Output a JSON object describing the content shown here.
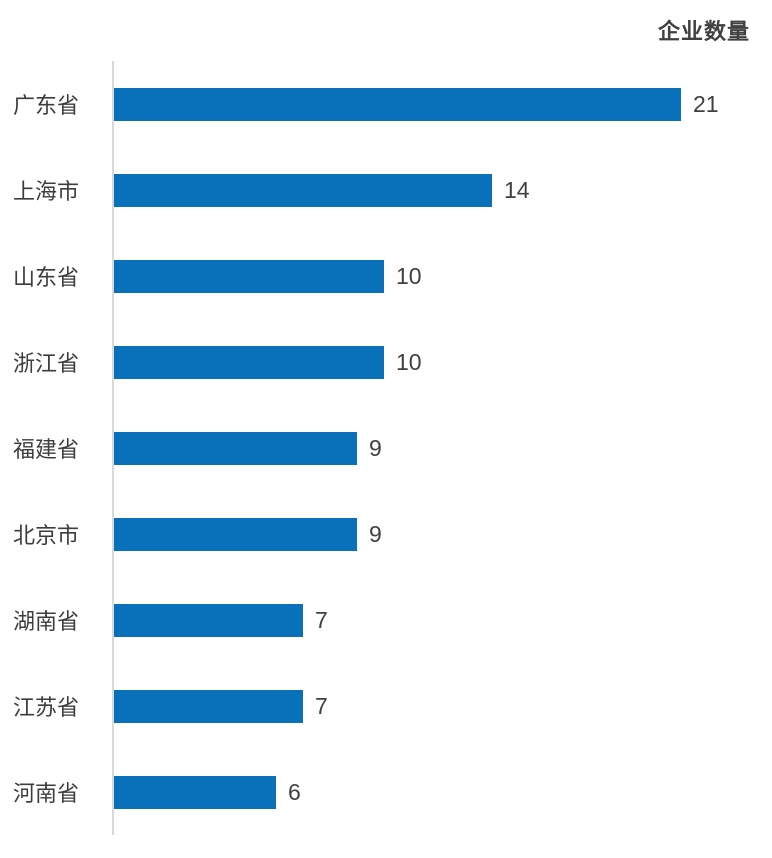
{
  "chart_data": {
    "type": "bar",
    "orientation": "horizontal",
    "title": "企业数量",
    "categories": [
      "广东省",
      "上海市",
      "山东省",
      "浙江省",
      "福建省",
      "北京市",
      "湖南省",
      "江苏省",
      "河南省"
    ],
    "values": [
      21,
      14,
      10,
      10,
      9,
      9,
      7,
      7,
      6
    ],
    "xlabel": "",
    "ylabel": "",
    "xlim": [
      0,
      21
    ],
    "grid": false,
    "legend": false,
    "value_labels_shown": true,
    "bar_color": "#0871BA",
    "axis_color": "#D9D9D9",
    "label_color": "#3D3D3D",
    "value_color": "#404040",
    "title_color": "#404040"
  }
}
